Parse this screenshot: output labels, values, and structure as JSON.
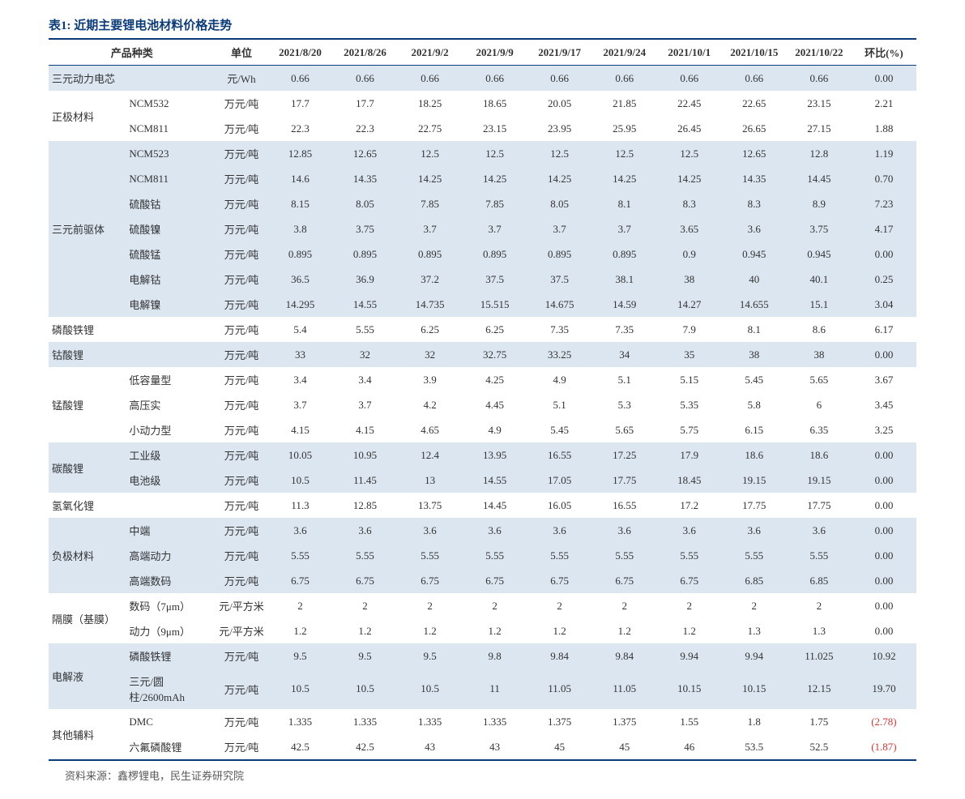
{
  "title": "表1: 近期主要锂电池材料价格走势",
  "source": "资料来源：鑫椤锂电，民生证券研究院",
  "colors": {
    "heading": "#0b3b78",
    "band": "#dce6f1",
    "neg": "#d83535"
  },
  "header": {
    "cat": "产品种类",
    "unit": "单位",
    "dates": [
      "2021/8/20",
      "2021/8/26",
      "2021/9/2",
      "2021/9/9",
      "2021/9/17",
      "2021/9/24",
      "2021/10/1",
      "2021/10/15",
      "2021/10/22"
    ],
    "mom": "环比(%)"
  },
  "rows": [
    {
      "shade": 1,
      "cat": "三元动力电芯",
      "sub": "",
      "unit": "元/Wh",
      "v": [
        "0.66",
        "0.66",
        "0.66",
        "0.66",
        "0.66",
        "0.66",
        "0.66",
        "0.66",
        "0.66"
      ],
      "mom": "0.00"
    },
    {
      "shade": 0,
      "cat": "正极材料",
      "sub": "NCM532",
      "unit": "万元/吨",
      "v": [
        "17.7",
        "17.7",
        "18.25",
        "18.65",
        "20.05",
        "21.85",
        "22.45",
        "22.65",
        "23.15"
      ],
      "mom": "2.21",
      "rowspan": 2
    },
    {
      "shade": 0,
      "cat": "",
      "sub": "NCM811",
      "unit": "万元/吨",
      "v": [
        "22.3",
        "22.3",
        "22.75",
        "23.15",
        "23.95",
        "25.95",
        "26.45",
        "26.65",
        "27.15"
      ],
      "mom": "1.88",
      "cont": 1
    },
    {
      "shade": 1,
      "cat": "三元前驱体",
      "sub": "NCM523",
      "unit": "万元/吨",
      "v": [
        "12.85",
        "12.65",
        "12.5",
        "12.5",
        "12.5",
        "12.5",
        "12.5",
        "12.65",
        "12.8"
      ],
      "mom": "1.19",
      "rowspan": 7
    },
    {
      "shade": 1,
      "cat": "",
      "sub": "NCM811",
      "unit": "万元/吨",
      "v": [
        "14.6",
        "14.35",
        "14.25",
        "14.25",
        "14.25",
        "14.25",
        "14.25",
        "14.35",
        "14.45"
      ],
      "mom": "0.70",
      "cont": 1
    },
    {
      "shade": 1,
      "cat": "",
      "sub": "硫酸钴",
      "unit": "万元/吨",
      "v": [
        "8.15",
        "8.05",
        "7.85",
        "7.85",
        "8.05",
        "8.1",
        "8.3",
        "8.3",
        "8.9"
      ],
      "mom": "7.23",
      "cont": 1
    },
    {
      "shade": 1,
      "cat": "",
      "sub": "硫酸镍",
      "unit": "万元/吨",
      "v": [
        "3.8",
        "3.75",
        "3.7",
        "3.7",
        "3.7",
        "3.7",
        "3.65",
        "3.6",
        "3.75"
      ],
      "mom": "4.17",
      "cont": 1
    },
    {
      "shade": 1,
      "cat": "",
      "sub": "硫酸锰",
      "unit": "万元/吨",
      "v": [
        "0.895",
        "0.895",
        "0.895",
        "0.895",
        "0.895",
        "0.895",
        "0.9",
        "0.945",
        "0.945"
      ],
      "mom": "0.00",
      "cont": 1
    },
    {
      "shade": 1,
      "cat": "",
      "sub": "电解钴",
      "unit": "万元/吨",
      "v": [
        "36.5",
        "36.9",
        "37.2",
        "37.5",
        "37.5",
        "38.1",
        "38",
        "40",
        "40.1"
      ],
      "mom": "0.25",
      "cont": 1
    },
    {
      "shade": 1,
      "cat": "",
      "sub": "电解镍",
      "unit": "万元/吨",
      "v": [
        "14.295",
        "14.55",
        "14.735",
        "15.515",
        "14.675",
        "14.59",
        "14.27",
        "14.655",
        "15.1"
      ],
      "mom": "3.04",
      "cont": 1
    },
    {
      "shade": 0,
      "cat": "磷酸铁锂",
      "sub": "",
      "unit": "万元/吨",
      "v": [
        "5.4",
        "5.55",
        "6.25",
        "6.25",
        "7.35",
        "7.35",
        "7.9",
        "8.1",
        "8.6"
      ],
      "mom": "6.17"
    },
    {
      "shade": 1,
      "cat": "钴酸锂",
      "sub": "",
      "unit": "万元/吨",
      "v": [
        "33",
        "32",
        "32",
        "32.75",
        "33.25",
        "34",
        "35",
        "38",
        "38"
      ],
      "mom": "0.00"
    },
    {
      "shade": 0,
      "cat": "锰酸锂",
      "sub": "低容量型",
      "unit": "万元/吨",
      "v": [
        "3.4",
        "3.4",
        "3.9",
        "4.25",
        "4.9",
        "5.1",
        "5.15",
        "5.45",
        "5.65"
      ],
      "mom": "3.67",
      "rowspan": 3
    },
    {
      "shade": 0,
      "cat": "",
      "sub": "高压实",
      "unit": "万元/吨",
      "v": [
        "3.7",
        "3.7",
        "4.2",
        "4.45",
        "5.1",
        "5.3",
        "5.35",
        "5.8",
        "6"
      ],
      "mom": "3.45",
      "cont": 1
    },
    {
      "shade": 0,
      "cat": "",
      "sub": "小动力型",
      "unit": "万元/吨",
      "v": [
        "4.15",
        "4.15",
        "4.65",
        "4.9",
        "5.45",
        "5.65",
        "5.75",
        "6.15",
        "6.35"
      ],
      "mom": "3.25",
      "cont": 1
    },
    {
      "shade": 1,
      "cat": "碳酸锂",
      "sub": "工业级",
      "unit": "万元/吨",
      "v": [
        "10.05",
        "10.95",
        "12.4",
        "13.95",
        "16.55",
        "17.25",
        "17.9",
        "18.6",
        "18.6"
      ],
      "mom": "0.00",
      "rowspan": 2
    },
    {
      "shade": 1,
      "cat": "",
      "sub": "电池级",
      "unit": "万元/吨",
      "v": [
        "10.5",
        "11.45",
        "13",
        "14.55",
        "17.05",
        "17.75",
        "18.45",
        "19.15",
        "19.15"
      ],
      "mom": "0.00",
      "cont": 1
    },
    {
      "shade": 0,
      "cat": "氢氧化锂",
      "sub": "",
      "unit": "万元/吨",
      "v": [
        "11.3",
        "12.85",
        "13.75",
        "14.45",
        "16.05",
        "16.55",
        "17.2",
        "17.75",
        "17.75"
      ],
      "mom": "0.00"
    },
    {
      "shade": 1,
      "cat": "负极材料",
      "sub": "中端",
      "unit": "万元/吨",
      "v": [
        "3.6",
        "3.6",
        "3.6",
        "3.6",
        "3.6",
        "3.6",
        "3.6",
        "3.6",
        "3.6"
      ],
      "mom": "0.00",
      "rowspan": 3
    },
    {
      "shade": 1,
      "cat": "",
      "sub": "高端动力",
      "unit": "万元/吨",
      "v": [
        "5.55",
        "5.55",
        "5.55",
        "5.55",
        "5.55",
        "5.55",
        "5.55",
        "5.55",
        "5.55"
      ],
      "mom": "0.00",
      "cont": 1
    },
    {
      "shade": 1,
      "cat": "",
      "sub": "高端数码",
      "unit": "万元/吨",
      "v": [
        "6.75",
        "6.75",
        "6.75",
        "6.75",
        "6.75",
        "6.75",
        "6.75",
        "6.85",
        "6.85"
      ],
      "mom": "0.00",
      "cont": 1
    },
    {
      "shade": 0,
      "cat": "隔膜（基膜）",
      "sub": "数码（7μm）",
      "unit": "元/平方米",
      "v": [
        "2",
        "2",
        "2",
        "2",
        "2",
        "2",
        "2",
        "2",
        "2"
      ],
      "mom": "0.00",
      "rowspan": 2
    },
    {
      "shade": 0,
      "cat": "",
      "sub": "动力（9μm）",
      "unit": "元/平方米",
      "v": [
        "1.2",
        "1.2",
        "1.2",
        "1.2",
        "1.2",
        "1.2",
        "1.2",
        "1.3",
        "1.3"
      ],
      "mom": "0.00",
      "cont": 1
    },
    {
      "shade": 1,
      "cat": "电解液",
      "sub": "磷酸铁锂",
      "unit": "万元/吨",
      "v": [
        "9.5",
        "9.5",
        "9.5",
        "9.8",
        "9.84",
        "9.84",
        "9.94",
        "9.94",
        "11.025"
      ],
      "mom": "10.92",
      "rowspan": 2
    },
    {
      "shade": 1,
      "cat": "",
      "sub": "三元/圆柱/2600mAh",
      "unit": "万元/吨",
      "v": [
        "10.5",
        "10.5",
        "10.5",
        "11",
        "11.05",
        "11.05",
        "10.15",
        "10.15",
        "12.15"
      ],
      "mom": "19.70",
      "cont": 1
    },
    {
      "shade": 0,
      "cat": "其他辅料",
      "sub": "DMC",
      "unit": "万元/吨",
      "v": [
        "1.335",
        "1.335",
        "1.335",
        "1.335",
        "1.375",
        "1.375",
        "1.55",
        "1.8",
        "1.75"
      ],
      "mom": "(2.78)",
      "neg": 1,
      "rowspan": 2
    },
    {
      "shade": 0,
      "cat": "",
      "sub": "六氟磷酸锂",
      "unit": "万元/吨",
      "v": [
        "42.5",
        "42.5",
        "43",
        "43",
        "45",
        "45",
        "46",
        "53.5",
        "52.5"
      ],
      "mom": "(1.87)",
      "neg": 1,
      "cont": 1
    }
  ]
}
